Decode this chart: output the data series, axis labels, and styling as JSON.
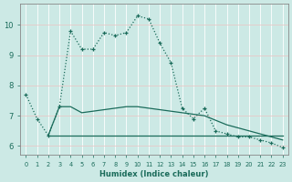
{
  "title": "",
  "xlabel": "Humidex (Indice chaleur)",
  "ylabel": "",
  "background_color": "#cce9e5",
  "line_color": "#1a6b5a",
  "grid_color": "#b0d8d4",
  "series1_x": [
    0,
    1,
    2,
    3,
    4,
    5,
    6,
    7,
    8,
    9,
    10,
    11,
    12,
    13,
    14,
    15,
    16,
    17,
    18,
    19,
    20,
    21,
    22,
    23
  ],
  "series1_y": [
    7.7,
    6.9,
    6.35,
    7.3,
    9.8,
    9.2,
    9.2,
    9.75,
    9.65,
    9.75,
    10.3,
    10.2,
    9.4,
    8.75,
    7.25,
    6.9,
    7.25,
    6.5,
    6.4,
    6.3,
    6.3,
    6.2,
    6.1,
    5.95
  ],
  "series2_x": [
    2,
    3,
    4,
    5,
    6,
    7,
    8,
    9,
    10,
    11,
    12,
    13,
    14,
    15,
    16,
    17,
    18,
    19,
    20,
    21,
    22,
    23
  ],
  "series2_y": [
    6.35,
    7.3,
    7.3,
    7.1,
    7.15,
    7.2,
    7.25,
    7.3,
    7.3,
    7.25,
    7.2,
    7.15,
    7.1,
    7.05,
    7.0,
    6.85,
    6.7,
    6.6,
    6.5,
    6.4,
    6.3,
    6.2
  ],
  "flat_line_x": [
    2,
    23
  ],
  "flat_line_y": [
    6.35,
    6.35
  ],
  "ylim": [
    5.7,
    10.7
  ],
  "yticks": [
    6,
    7,
    8,
    9,
    10
  ],
  "xlim": [
    -0.5,
    23.5
  ],
  "xticks": [
    0,
    1,
    2,
    3,
    4,
    5,
    6,
    7,
    8,
    9,
    10,
    11,
    12,
    13,
    14,
    15,
    16,
    17,
    18,
    19,
    20,
    21,
    22,
    23
  ]
}
